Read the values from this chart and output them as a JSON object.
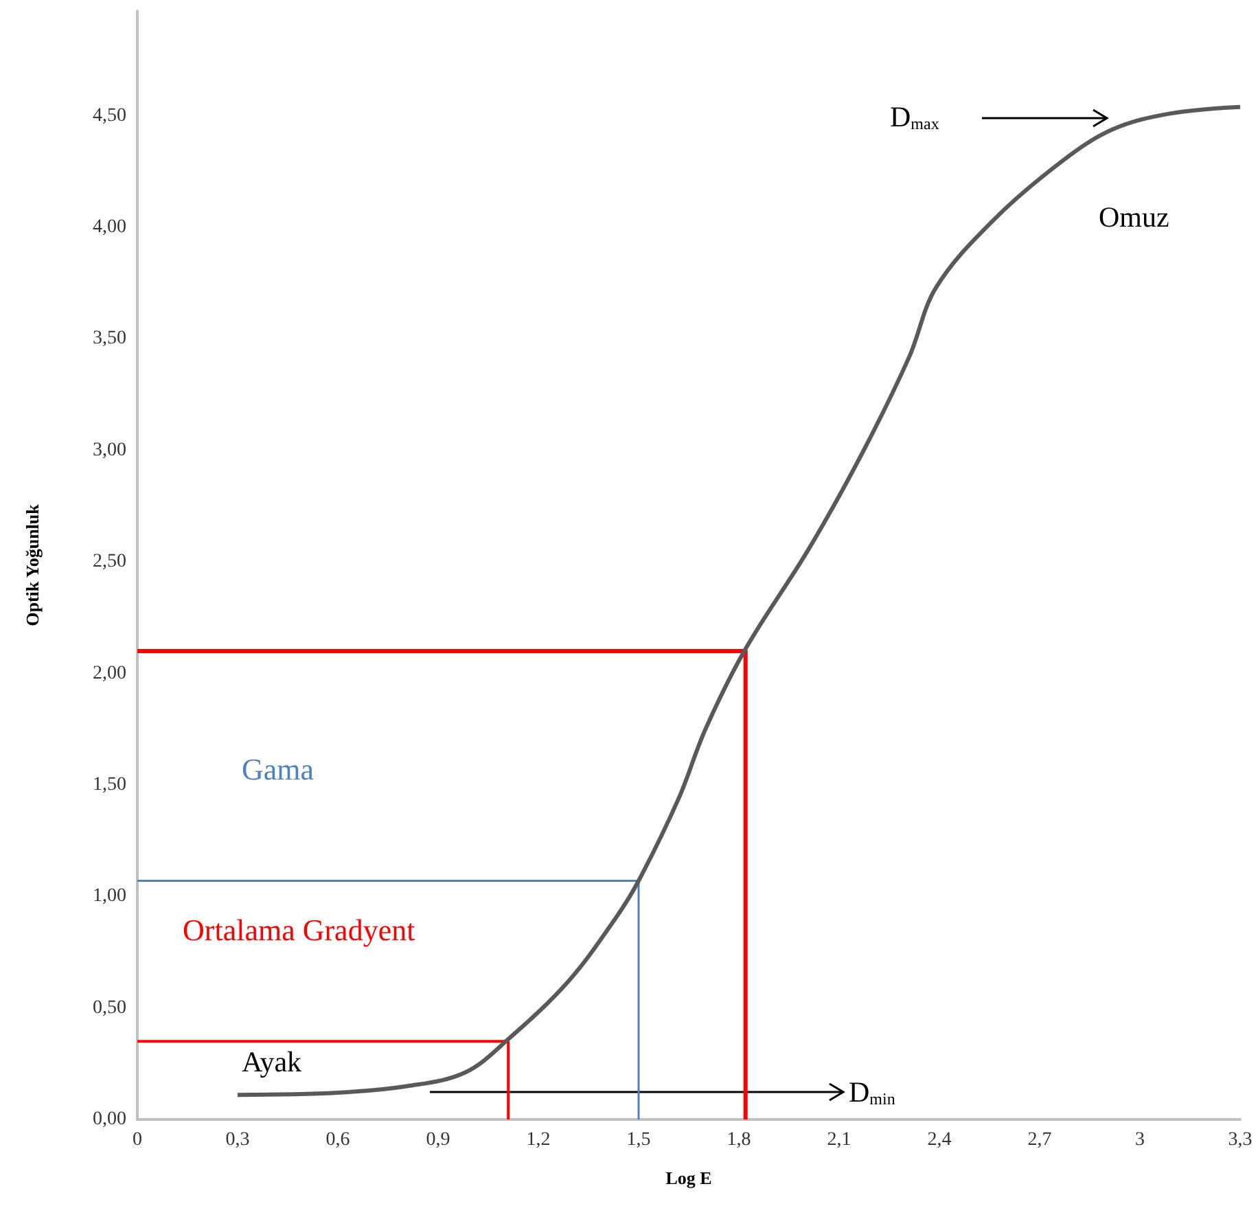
{
  "chart_data": {
    "type": "line",
    "xlabel": "Log E",
    "ylabel": "Optik Yoğunluk",
    "xlim": [
      0,
      3.3
    ],
    "ylim": [
      0,
      4.97
    ],
    "xticks": [
      0,
      {
        "value": 0.3,
        "label": "0,3"
      },
      {
        "value": 0.6,
        "label": "0,6"
      },
      {
        "value": 0.9,
        "label": "0,9"
      },
      {
        "value": 1.2,
        "label": "1,2"
      },
      {
        "value": 1.5,
        "label": "1,5"
      },
      {
        "value": 1.8,
        "label": "1,8"
      },
      {
        "value": 2.1,
        "label": "2,1"
      },
      {
        "value": 2.4,
        "label": "2,4"
      },
      {
        "value": 2.7,
        "label": "2,7"
      },
      3,
      {
        "value": 3.3,
        "label": "3,3"
      }
    ],
    "yticks": [
      {
        "value": 0,
        "label": "0,00"
      },
      {
        "value": 0.5,
        "label": "0,50"
      },
      {
        "value": 1,
        "label": "1,00"
      },
      {
        "value": 1.5,
        "label": "1,50"
      },
      {
        "value": 2,
        "label": "2,00"
      },
      {
        "value": 2.5,
        "label": "2,50"
      },
      {
        "value": 3,
        "label": "3,00"
      },
      {
        "value": 3.5,
        "label": "3,50"
      },
      {
        "value": 4,
        "label": "4,00"
      },
      {
        "value": 4.5,
        "label": "4,50"
      }
    ],
    "grid": false,
    "marker": "none",
    "line_style": "solid",
    "series": [
      {
        "color": "#4f81bd",
        "x": [
          0,
          1.5,
          1.5
        ],
        "values": [
          1.07,
          1.07,
          0
        ]
      },
      {
        "color": "#ff0000",
        "x": [
          0,
          1.11,
          1.11
        ],
        "values": [
          0.35,
          0.35,
          0
        ]
      },
      {
        "color": "#ff0000",
        "x": [
          0,
          1.82,
          1.82
        ],
        "values": [
          2.1,
          2.1,
          0
        ]
      },
      {
        "color": "#595959",
        "x": [
          0.3,
          0.6,
          0.81,
          0.98,
          1.11,
          1.29,
          1.43,
          1.5,
          1.62,
          1.7,
          1.82,
          2.01,
          2.17,
          2.31,
          2.39,
          2.56,
          2.77,
          2.92,
          3.09,
          3.3
        ],
        "values": [
          0.11,
          0.12,
          0.15,
          0.21,
          0.36,
          0.62,
          0.9,
          1.07,
          1.44,
          1.75,
          2.11,
          2.56,
          2.99,
          3.42,
          3.73,
          4.03,
          4.3,
          4.44,
          4.51,
          4.54
        ]
      }
    ],
    "annotations": [
      "Ayak",
      "Ortalama Gradyent",
      "Gama",
      "Omuz",
      "D$_{max}$",
      "D$_{min}$"
    ]
  }
}
